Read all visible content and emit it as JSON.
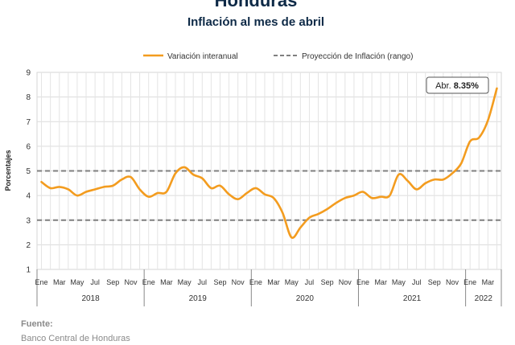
{
  "chart_data": {
    "type": "line",
    "title": "Honduras",
    "subtitle": "Inflación al mes de abril",
    "ylabel": "Porcentajes",
    "ylim": [
      1,
      9
    ],
    "yticks": [
      1,
      2,
      3,
      4,
      5,
      6,
      7,
      8,
      9
    ],
    "grid": true,
    "legend_position": "top",
    "month_ticks": [
      "Ene",
      "Mar",
      "May",
      "Jul",
      "Sep",
      "Nov",
      "Ene",
      "Mar",
      "May",
      "Jul",
      "Sep",
      "Nov",
      "Ene",
      "Mar",
      "May",
      "Jul",
      "Sep",
      "Nov",
      "Ene",
      "Mar",
      "May",
      "Jul",
      "Sep",
      "Nov",
      "Ene",
      "Mar"
    ],
    "years": [
      {
        "label": "2018",
        "months": 12
      },
      {
        "label": "2019",
        "months": 12
      },
      {
        "label": "2020",
        "months": 12
      },
      {
        "label": "2021",
        "months": 12
      },
      {
        "label": "2022",
        "months": 4
      }
    ],
    "series": [
      {
        "name": "Variación interanual",
        "color": "#F39C1F",
        "style": "solid",
        "values": [
          4.55,
          4.3,
          4.35,
          4.25,
          4.0,
          4.15,
          4.25,
          4.35,
          4.4,
          4.65,
          4.75,
          4.25,
          3.95,
          4.1,
          4.15,
          4.9,
          5.15,
          4.85,
          4.7,
          4.3,
          4.4,
          4.05,
          3.85,
          4.1,
          4.3,
          4.05,
          3.9,
          3.3,
          2.3,
          2.7,
          3.1,
          3.25,
          3.45,
          3.7,
          3.9,
          4.0,
          4.15,
          3.9,
          3.95,
          4.0,
          4.85,
          4.6,
          4.25,
          4.5,
          4.65,
          4.65,
          4.9,
          5.3,
          6.2,
          6.35,
          7.05,
          8.35
        ]
      },
      {
        "name": "Proyección de Inflación (rango)",
        "color": "#7F7F7F",
        "style": "dashed",
        "lines": [
          3,
          5
        ]
      }
    ],
    "annotation": {
      "prefix": "Abr.",
      "value": "8.35%"
    }
  },
  "footer": {
    "source_heading": "Fuente:",
    "source_text": "Banco Central de Honduras"
  }
}
